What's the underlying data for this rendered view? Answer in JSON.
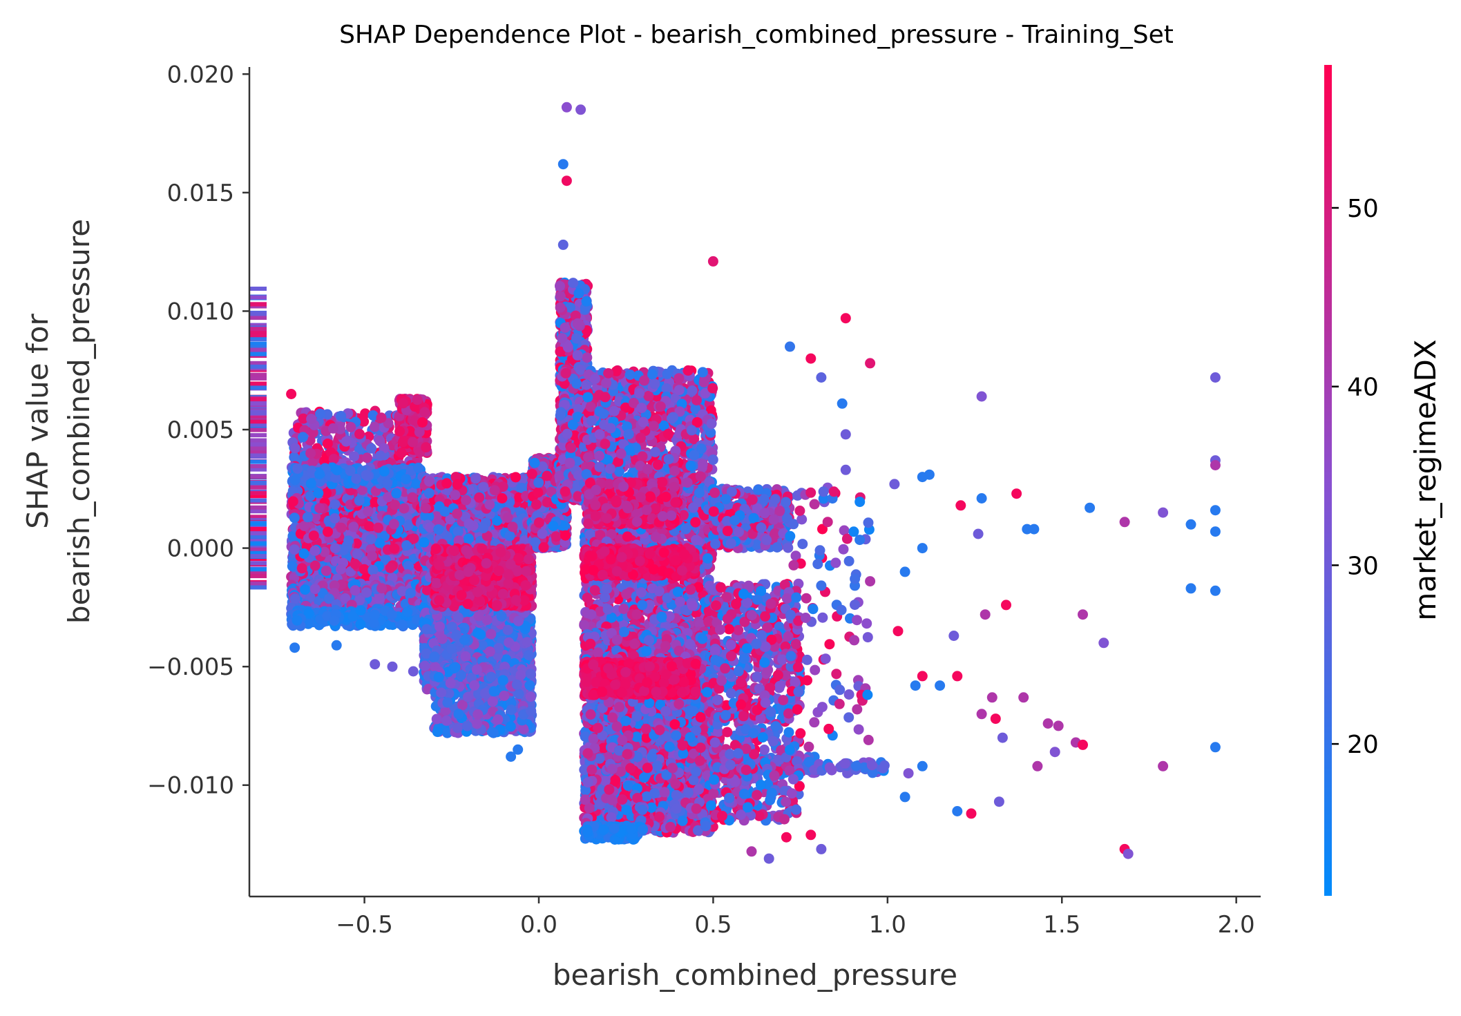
{
  "chart_data": {
    "type": "scatter",
    "title": "SHAP Dependence Plot - bearish_combined_pressure - Training_Set",
    "xlabel": "bearish_combined_pressure",
    "ylabel_lines": [
      "SHAP value for",
      "bearish_combined_pressure"
    ],
    "colorbar_label": "market_regimeADX",
    "xlim": [
      -0.83,
      2.07
    ],
    "ylim": [
      -0.0147,
      0.0203
    ],
    "x_ticks": [
      -0.5,
      0.0,
      0.5,
      1.0,
      1.5,
      2.0
    ],
    "x_tick_labels": [
      "−0.5",
      "0.0",
      "0.5",
      "1.0",
      "1.5",
      "2.0"
    ],
    "y_ticks": [
      0.02,
      0.015,
      0.01,
      0.005,
      0.0,
      -0.005,
      -0.01
    ],
    "y_tick_labels": [
      "0.020",
      "0.015",
      "0.010",
      "0.005",
      "0.000",
      "−0.005",
      "−0.010"
    ],
    "colorbar_range": [
      11.5,
      58
    ],
    "colorbar_ticks": [
      20,
      30,
      40,
      50
    ],
    "colorbar_tick_labels": [
      "20",
      "30",
      "40",
      "50"
    ],
    "colormap": [
      "#008bfb",
      "#ff0052"
    ],
    "colormap_mid": "#8a4fd0",
    "grid": false,
    "legend": "colorbar-right",
    "points": [
      {
        "x": 0.08,
        "y": 0.0186,
        "c": 35
      },
      {
        "x": 0.12,
        "y": 0.0185,
        "c": 33
      },
      {
        "x": 0.07,
        "y": 0.0162,
        "c": 18
      },
      {
        "x": 0.08,
        "y": 0.0155,
        "c": 55
      },
      {
        "x": 0.07,
        "y": 0.0128,
        "c": 27
      },
      {
        "x": 0.5,
        "y": 0.0121,
        "c": 52
      },
      {
        "x": 0.88,
        "y": 0.0097,
        "c": 56
      },
      {
        "x": 0.95,
        "y": 0.0078,
        "c": 52
      },
      {
        "x": 0.72,
        "y": 0.0085,
        "c": 20
      },
      {
        "x": 0.78,
        "y": 0.008,
        "c": 56
      },
      {
        "x": 0.81,
        "y": 0.0072,
        "c": 27
      },
      {
        "x": 0.87,
        "y": 0.0061,
        "c": 18
      },
      {
        "x": 1.27,
        "y": 0.0064,
        "c": 33
      },
      {
        "x": 1.94,
        "y": 0.0072,
        "c": 30
      },
      {
        "x": 0.88,
        "y": 0.0048,
        "c": 30
      },
      {
        "x": 0.88,
        "y": 0.0033,
        "c": 30
      },
      {
        "x": 1.94,
        "y": 0.0037,
        "c": 30
      },
      {
        "x": 1.94,
        "y": 0.0035,
        "c": 42
      },
      {
        "x": 1.1,
        "y": 0.003,
        "c": 18
      },
      {
        "x": 1.12,
        "y": 0.0031,
        "c": 18
      },
      {
        "x": 1.02,
        "y": 0.0027,
        "c": 30
      },
      {
        "x": 1.37,
        "y": 0.0023,
        "c": 56
      },
      {
        "x": 1.27,
        "y": 0.0021,
        "c": 18
      },
      {
        "x": 1.21,
        "y": 0.0018,
        "c": 56
      },
      {
        "x": 1.58,
        "y": 0.0017,
        "c": 18
      },
      {
        "x": 1.79,
        "y": 0.0015,
        "c": 33
      },
      {
        "x": 1.94,
        "y": 0.0016,
        "c": 18
      },
      {
        "x": 1.68,
        "y": 0.0011,
        "c": 42
      },
      {
        "x": 1.87,
        "y": 0.001,
        "c": 18
      },
      {
        "x": 1.94,
        "y": 0.0007,
        "c": 18
      },
      {
        "x": 1.4,
        "y": 0.0008,
        "c": 18
      },
      {
        "x": 1.42,
        "y": 0.0008,
        "c": 18
      },
      {
        "x": 1.26,
        "y": 0.0006,
        "c": 30
      },
      {
        "x": 1.1,
        "y": 0.0,
        "c": 18
      },
      {
        "x": 1.05,
        "y": -0.001,
        "c": 18
      },
      {
        "x": 0.95,
        "y": -0.0014,
        "c": 42
      },
      {
        "x": 1.87,
        "y": -0.0017,
        "c": 18
      },
      {
        "x": 1.94,
        "y": -0.0018,
        "c": 18
      },
      {
        "x": 1.34,
        "y": -0.0024,
        "c": 56
      },
      {
        "x": 1.28,
        "y": -0.0028,
        "c": 42
      },
      {
        "x": 1.56,
        "y": -0.0028,
        "c": 42
      },
      {
        "x": 1.62,
        "y": -0.004,
        "c": 33
      },
      {
        "x": 1.19,
        "y": -0.0037,
        "c": 30
      },
      {
        "x": 1.03,
        "y": -0.0035,
        "c": 56
      },
      {
        "x": 1.1,
        "y": -0.0054,
        "c": 56
      },
      {
        "x": 1.2,
        "y": -0.0054,
        "c": 56
      },
      {
        "x": 1.08,
        "y": -0.0058,
        "c": 18
      },
      {
        "x": 1.15,
        "y": -0.0058,
        "c": 18
      },
      {
        "x": 1.3,
        "y": -0.0063,
        "c": 42
      },
      {
        "x": 1.39,
        "y": -0.0063,
        "c": 42
      },
      {
        "x": 1.27,
        "y": -0.007,
        "c": 42
      },
      {
        "x": 1.31,
        "y": -0.0072,
        "c": 56
      },
      {
        "x": 1.46,
        "y": -0.0074,
        "c": 42
      },
      {
        "x": 1.49,
        "y": -0.0075,
        "c": 42
      },
      {
        "x": 1.54,
        "y": -0.0082,
        "c": 42
      },
      {
        "x": 1.56,
        "y": -0.0083,
        "c": 56
      },
      {
        "x": 1.48,
        "y": -0.0086,
        "c": 33
      },
      {
        "x": 1.33,
        "y": -0.008,
        "c": 30
      },
      {
        "x": 1.94,
        "y": -0.0084,
        "c": 18
      },
      {
        "x": 1.79,
        "y": -0.0092,
        "c": 42
      },
      {
        "x": 1.43,
        "y": -0.0092,
        "c": 42
      },
      {
        "x": 1.06,
        "y": -0.0095,
        "c": 33
      },
      {
        "x": 1.1,
        "y": -0.0092,
        "c": 18
      },
      {
        "x": 1.2,
        "y": -0.0111,
        "c": 18
      },
      {
        "x": 1.24,
        "y": -0.0112,
        "c": 56
      },
      {
        "x": 1.32,
        "y": -0.0107,
        "c": 30
      },
      {
        "x": 1.05,
        "y": -0.0105,
        "c": 18
      },
      {
        "x": 1.68,
        "y": -0.0127,
        "c": 56
      },
      {
        "x": 1.69,
        "y": -0.0129,
        "c": 33
      },
      {
        "x": 0.66,
        "y": -0.0131,
        "c": 30
      },
      {
        "x": 0.61,
        "y": -0.0128,
        "c": 42
      },
      {
        "x": 0.81,
        "y": -0.0127,
        "c": 30
      },
      {
        "x": 0.71,
        "y": -0.0122,
        "c": 56
      },
      {
        "x": 0.78,
        "y": -0.0121,
        "c": 56
      },
      {
        "x": -0.71,
        "y": 0.0065,
        "c": 56
      },
      {
        "x": -0.7,
        "y": -0.0042,
        "c": 18
      },
      {
        "x": -0.58,
        "y": -0.0041,
        "c": 18
      },
      {
        "x": -0.47,
        "y": -0.0049,
        "c": 30
      },
      {
        "x": -0.42,
        "y": -0.005,
        "c": 30
      },
      {
        "x": -0.36,
        "y": -0.0052,
        "c": 30
      },
      {
        "x": -0.28,
        "y": -0.0061,
        "c": 30
      },
      {
        "x": -0.23,
        "y": -0.007,
        "c": 18
      },
      {
        "x": -0.13,
        "y": -0.0078,
        "c": 18
      },
      {
        "x": -0.08,
        "y": -0.0088,
        "c": 18
      },
      {
        "x": -0.06,
        "y": -0.0085,
        "c": 18
      }
    ],
    "clusters": [
      {
        "x": [
          -0.71,
          -0.33
        ],
        "y": [
          0.0025,
          0.0058
        ],
        "n": 380,
        "c": [
          18,
          58
        ]
      },
      {
        "x": [
          -0.71,
          -0.33
        ],
        "y": [
          -0.0015,
          0.0025
        ],
        "n": 1400,
        "c": [
          14,
          58
        ]
      },
      {
        "x": [
          -0.71,
          -0.33
        ],
        "y": [
          -0.003,
          -0.0015
        ],
        "n": 500,
        "c": [
          14,
          50
        ]
      },
      {
        "x": [
          -0.71,
          -0.33
        ],
        "y": [
          -0.0033,
          -0.0026
        ],
        "n": 140,
        "c": [
          14,
          22
        ]
      },
      {
        "x": [
          -0.71,
          -0.33
        ],
        "y": [
          0.0027,
          0.0034
        ],
        "n": 180,
        "c": [
          14,
          26
        ]
      },
      {
        "x": [
          -0.4,
          -0.32
        ],
        "y": [
          0.004,
          0.0063
        ],
        "n": 260,
        "c": [
          42,
          58
        ]
      },
      {
        "x": [
          -0.33,
          -0.02
        ],
        "y": [
          -0.0025,
          0.003
        ],
        "n": 1800,
        "c": [
          14,
          58
        ]
      },
      {
        "x": [
          -0.33,
          -0.02
        ],
        "y": [
          -0.006,
          -0.0025
        ],
        "n": 1300,
        "c": [
          14,
          40
        ]
      },
      {
        "x": [
          -0.3,
          -0.02
        ],
        "y": [
          -0.0078,
          -0.005
        ],
        "n": 500,
        "c": [
          14,
          40
        ]
      },
      {
        "x": [
          -0.3,
          -0.02
        ],
        "y": [
          -0.0025,
          0.0
        ],
        "n": 600,
        "c": [
          46,
          58
        ]
      },
      {
        "x": [
          -0.02,
          0.08
        ],
        "y": [
          0.0,
          0.0038
        ],
        "n": 600,
        "c": [
          14,
          58
        ]
      },
      {
        "x": [
          0.06,
          0.14
        ],
        "y": [
          0.002,
          0.0112
        ],
        "n": 1000,
        "c": [
          14,
          58
        ]
      },
      {
        "x": [
          0.13,
          0.5
        ],
        "y": [
          -0.0035,
          0.0075
        ],
        "n": 1900,
        "c": [
          14,
          58
        ]
      },
      {
        "x": [
          0.13,
          0.5
        ],
        "y": [
          -0.012,
          -0.0035
        ],
        "n": 2500,
        "c": [
          14,
          58
        ]
      },
      {
        "x": [
          0.13,
          0.45
        ],
        "y": [
          -0.0062,
          -0.0048
        ],
        "n": 700,
        "c": [
          50,
          58
        ]
      },
      {
        "x": [
          0.13,
          0.45
        ],
        "y": [
          -0.0012,
          0.0
        ],
        "n": 400,
        "c": [
          50,
          58
        ]
      },
      {
        "x": [
          0.14,
          0.4
        ],
        "y": [
          0.001,
          0.0028
        ],
        "n": 600,
        "c": [
          40,
          58
        ]
      },
      {
        "x": [
          0.13,
          0.3
        ],
        "y": [
          -0.0123,
          -0.0117
        ],
        "n": 120,
        "c": [
          14,
          20
        ]
      },
      {
        "x": [
          0.5,
          0.8
        ],
        "y": [
          -0.0095,
          -0.0088
        ],
        "n": 180,
        "c": [
          14,
          35
        ]
      },
      {
        "x": [
          0.8,
          1.0
        ],
        "y": [
          -0.0095,
          -0.009
        ],
        "n": 40,
        "c": [
          14,
          40
        ]
      },
      {
        "x": [
          0.5,
          0.75
        ],
        "y": [
          -0.0115,
          -0.0015
        ],
        "n": 700,
        "c": [
          14,
          58
        ]
      },
      {
        "x": [
          0.5,
          0.72
        ],
        "y": [
          0.0,
          0.0025
        ],
        "n": 400,
        "c": [
          14,
          58
        ]
      },
      {
        "x": [
          0.72,
          0.95
        ],
        "y": [
          -0.0085,
          0.0027
        ],
        "n": 100,
        "c": [
          14,
          58
        ]
      }
    ],
    "rug": {
      "y": [
        -0.0018,
        0.0111
      ],
      "n": 150,
      "c": [
        14,
        58
      ]
    }
  }
}
